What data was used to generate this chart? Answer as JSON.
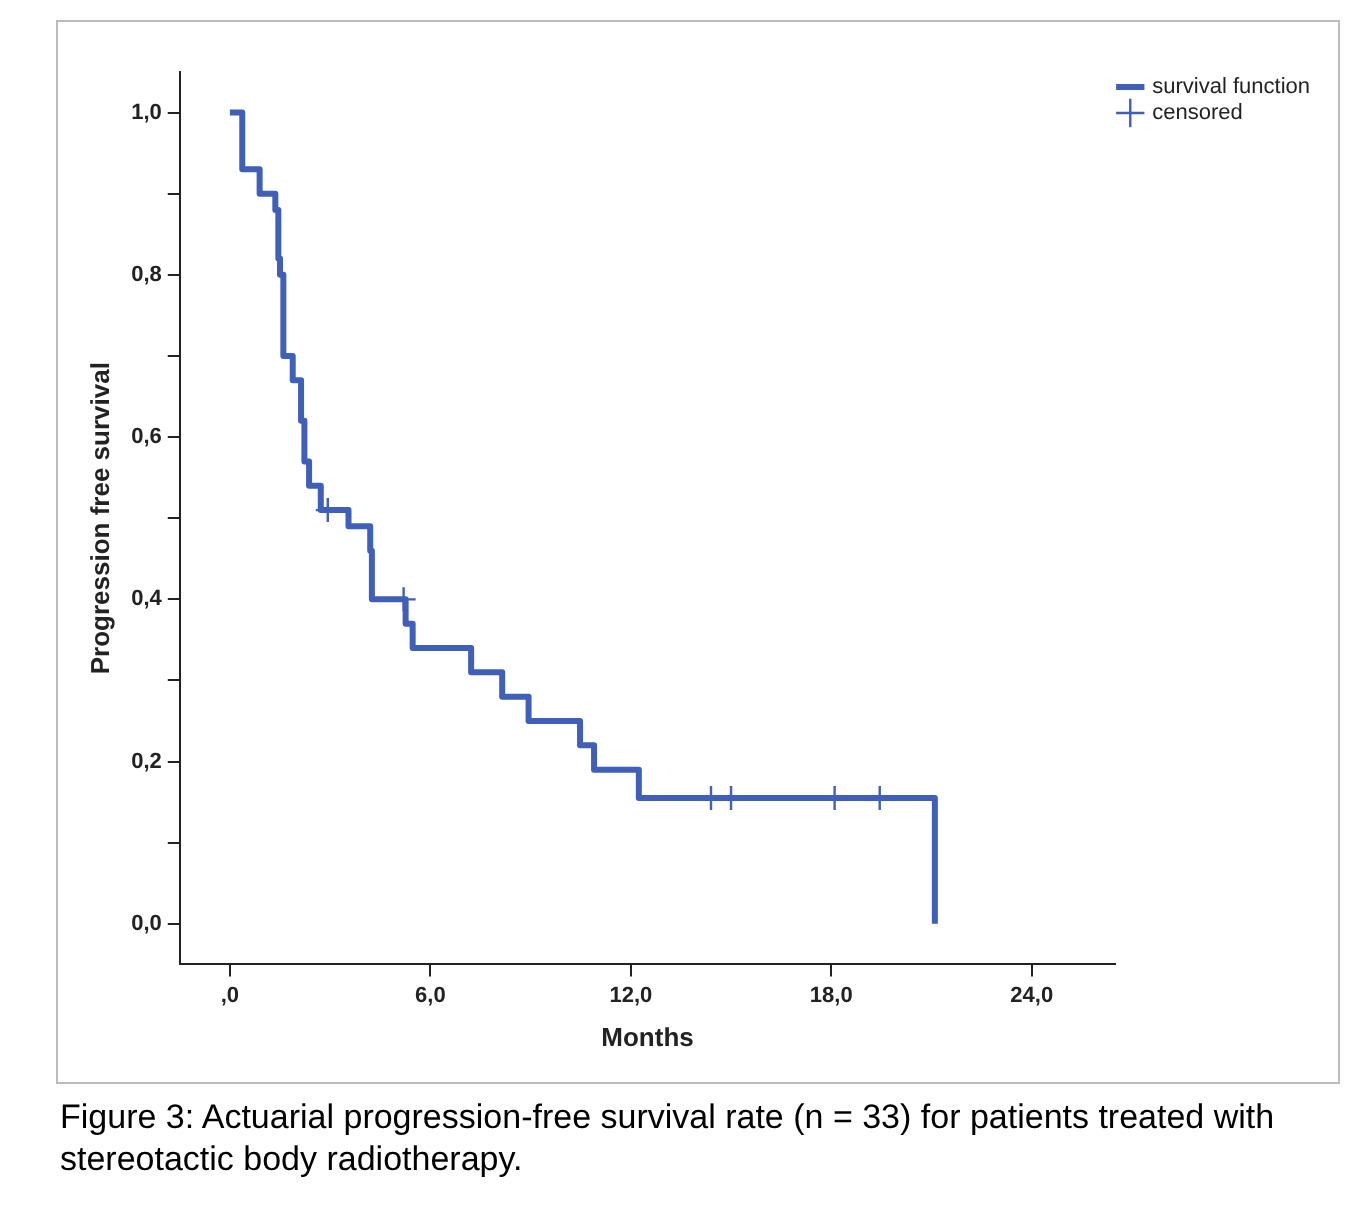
{
  "chart_data": {
    "type": "step",
    "xlabel": "Months",
    "ylabel": "Progression free survival",
    "xlim": [
      -1.5,
      26.5
    ],
    "ylim": [
      -0.05,
      1.05
    ],
    "xticks": [
      {
        "value": 0,
        "label": ",0"
      },
      {
        "value": 6,
        "label": "6,0"
      },
      {
        "value": 12,
        "label": "12,0"
      },
      {
        "value": 18,
        "label": "18,0"
      },
      {
        "value": 24,
        "label": "24,0"
      }
    ],
    "yticks": [
      {
        "value": 0,
        "label": "0,0"
      },
      {
        "value": 0.1,
        "label": null
      },
      {
        "value": 0.2,
        "label": "0,2"
      },
      {
        "value": 0.3,
        "label": null
      },
      {
        "value": 0.4,
        "label": "0,4"
      },
      {
        "value": 0.5,
        "label": null
      },
      {
        "value": 0.6,
        "label": "0,6"
      },
      {
        "value": 0.7,
        "label": null
      },
      {
        "value": 0.8,
        "label": "0,8"
      },
      {
        "value": 0.9,
        "label": null
      },
      {
        "value": 1,
        "label": "1,0"
      }
    ],
    "grid": false,
    "legend": "top right",
    "series": [
      {
        "name": "survival function",
        "type": "step",
        "color": "#3f5fb8",
        "marker": "none",
        "x": [
          0,
          0.37,
          0.89,
          1.36,
          1.45,
          1.5,
          1.6,
          1.88,
          2.13,
          2.23,
          2.37,
          2.72,
          3.55,
          4.2,
          4.25,
          5.26,
          5.47,
          7.22,
          8.15,
          8.94,
          10.48,
          10.9,
          12.24,
          21.1
        ],
        "values": [
          1,
          0.93,
          0.9,
          0.88,
          0.82,
          0.8,
          0.7,
          0.67,
          0.62,
          0.57,
          0.54,
          0.51,
          0.49,
          0.46,
          0.4,
          0.37,
          0.34,
          0.31,
          0.28,
          0.25,
          0.22,
          0.19,
          0.155,
          0
        ]
      },
      {
        "name": "censored",
        "type": "scatter",
        "color": "#3f5fb8",
        "marker": "cross",
        "x": [
          2.93,
          5.2,
          14.4,
          15.0,
          18.1,
          19.45
        ],
        "values": [
          0.51,
          0.4,
          0.155,
          0.155,
          0.155,
          0.155
        ]
      }
    ],
    "annotations": [
      "Figure 3: Actuarial progression-free survival rate (n = 33) for patients treated with stereotactic body radiotherapy."
    ]
  }
}
